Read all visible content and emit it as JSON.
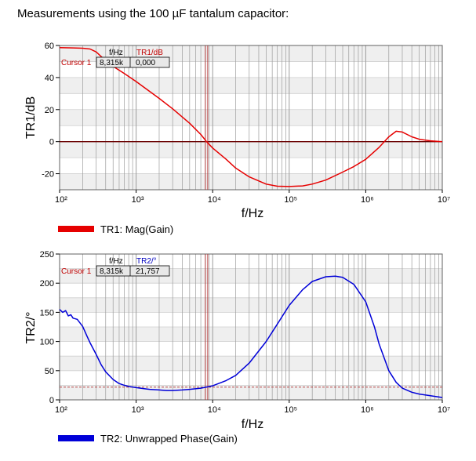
{
  "title": "Measurements using the 100 µF tantalum capacitor:",
  "colors": {
    "tr1": "#e60000",
    "tr2": "#0000d8",
    "cursor_line": "#b03030",
    "zero_line": "#6a0000",
    "plot_band": "#efefef",
    "grid": "#9c9c9c"
  },
  "chart_data": [
    {
      "type": "line",
      "xscale": "log",
      "xlim": [
        100,
        10000000
      ],
      "xticks": [
        "10²",
        "10³",
        "10⁴",
        "10⁵",
        "10⁶",
        "10⁷"
      ],
      "xlabel": "f/Hz",
      "ylabel": "TR1/dB",
      "ylim": [
        -30,
        60
      ],
      "yticks": [
        "60",
        "40",
        "20",
        "0",
        "-20"
      ],
      "legend": "bottom-left",
      "series": [
        {
          "name": "TR1: Mag(Gain)",
          "x": [
            100,
            150,
            200,
            250,
            300,
            400,
            500,
            700,
            1000,
            2000,
            3000,
            5000,
            7000,
            8315,
            10000,
            15000,
            20000,
            30000,
            50000,
            70000,
            100000,
            150000,
            200000,
            300000,
            500000,
            700000,
            1000000,
            1500000,
            2000000,
            2500000,
            3000000,
            4000000,
            5000000,
            7000000,
            10000000
          ],
          "y": [
            58.7,
            58.5,
            58.3,
            57.8,
            56.0,
            50.5,
            47.0,
            42.5,
            37.5,
            27.0,
            20.5,
            11.5,
            4.5,
            0.0,
            -4.0,
            -11.0,
            -16.5,
            -22.0,
            -26.5,
            -27.8,
            -28.0,
            -27.6,
            -26.5,
            -24.0,
            -19.0,
            -15.5,
            -11.0,
            -3.5,
            3.0,
            6.5,
            6.0,
            3.0,
            1.5,
            0.5,
            0.0
          ]
        }
      ],
      "cursor": {
        "label": "Cursor 1",
        "f_header": "f/Hz",
        "tr_header": "TR1/dB",
        "f_value": "8,315k",
        "tr_value": "0,000",
        "x": 8315,
        "y": 0
      }
    },
    {
      "type": "line",
      "xscale": "log",
      "xlim": [
        100,
        10000000
      ],
      "xticks": [
        "10²",
        "10³",
        "10⁴",
        "10⁵",
        "10⁶",
        "10⁷"
      ],
      "xlabel": "f/Hz",
      "ylabel": "TR2/°",
      "ylim": [
        0,
        250
      ],
      "yticks": [
        "250",
        "200",
        "150",
        "100",
        "50",
        "0"
      ],
      "legend": "bottom-left",
      "series": [
        {
          "name": "TR2: Unwrapped Phase(Gain)",
          "x": [
            100,
            110,
            120,
            130,
            140,
            150,
            170,
            200,
            230,
            250,
            300,
            350,
            400,
            500,
            600,
            700,
            800,
            1000,
            1300,
            1500,
            2000,
            2500,
            3000,
            4000,
            5000,
            7000,
            10000,
            15000,
            20000,
            30000,
            50000,
            70000,
            100000,
            150000,
            200000,
            300000,
            400000,
            500000,
            700000,
            1000000,
            1300000,
            1500000,
            2000000,
            2500000,
            3000000,
            4000000,
            5000000,
            7000000,
            10000000
          ],
          "y": [
            155,
            150,
            153,
            144,
            146,
            140,
            138,
            126,
            108,
            98,
            78,
            60,
            48,
            35,
            28,
            25,
            23,
            21,
            19,
            18,
            17,
            16,
            16,
            17,
            18,
            20,
            24,
            33,
            42,
            63,
            100,
            130,
            162,
            189,
            203,
            211,
            212,
            210,
            198,
            168,
            125,
            95,
            50,
            30,
            20,
            13,
            10,
            7,
            4
          ]
        }
      ],
      "cursor": {
        "label": "Cursor 1",
        "f_header": "f/Hz",
        "tr_header": "TR2/°",
        "f_value": "8,315k",
        "tr_value": "21,757",
        "x": 8315,
        "y": 21.757
      }
    }
  ]
}
